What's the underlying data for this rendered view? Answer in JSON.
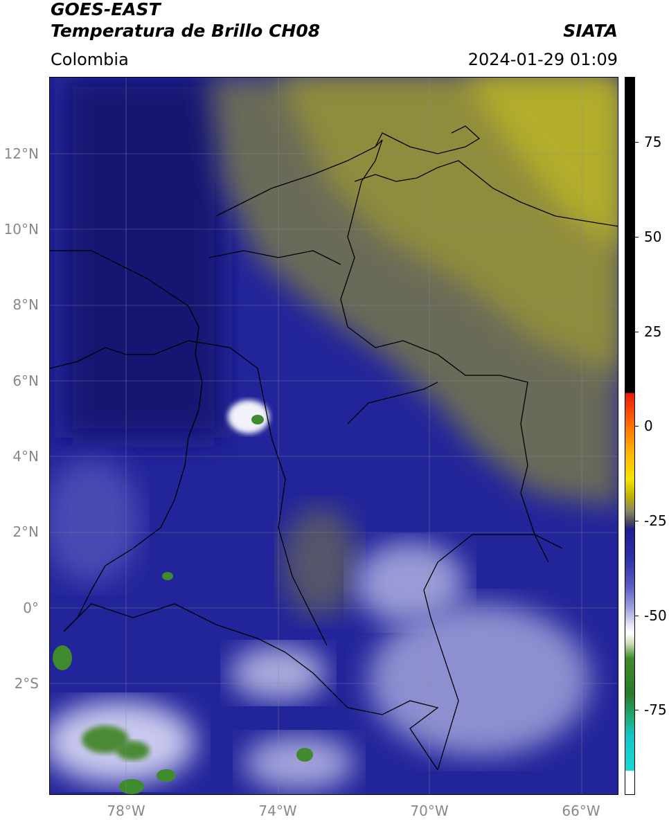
{
  "header": {
    "title_line1": "GOES-EAST",
    "title_line2": "Temperatura de Brillo CH08",
    "brand": "SIATA",
    "region": "Colombia",
    "timestamp": "2024-01-29 01:09"
  },
  "map": {
    "lat_labels": [
      "12°N",
      "10°N",
      "8°N",
      "6°N",
      "4°N",
      "2°N",
      "0°",
      "2°S"
    ],
    "lon_labels": [
      "78°W",
      "74°W",
      "70°W",
      "66°W"
    ],
    "extent": {
      "lon_min": -80,
      "lon_max": -65,
      "lat_min": -5,
      "lat_max": 14
    }
  },
  "colorbar": {
    "tick_labels": [
      "75",
      "50",
      "25",
      "0",
      "-25",
      "-50",
      "-75"
    ],
    "range": [
      -95,
      90
    ],
    "colors": {
      "warm_top": "#000000",
      "red": "#e81a0a",
      "yellow": "#f5e400",
      "olive": "#8a8566",
      "navy": "#1f1f90",
      "light": "#e8e8f4",
      "green": "#3f8a2c",
      "cyan": "#18d6d6"
    }
  }
}
